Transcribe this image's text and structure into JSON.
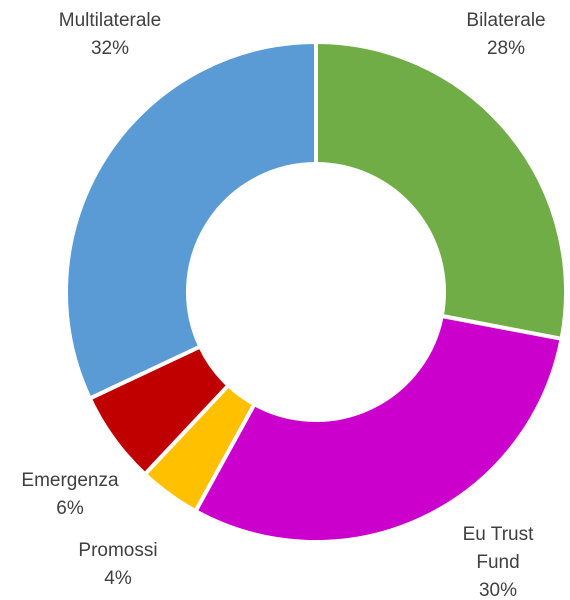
{
  "chart_data": {
    "type": "pie",
    "variant": "donut",
    "title": "",
    "legend": "none",
    "slices": [
      {
        "label": "Bilaterale",
        "percent_label": "28%",
        "value": 28,
        "color": "#70AD47"
      },
      {
        "label": "Eu Trust Fund",
        "percent_label": "30%",
        "value": 30,
        "color": "#CC00CC"
      },
      {
        "label": "Promossi",
        "percent_label": "4%",
        "value": 4,
        "color": "#FFC000"
      },
      {
        "label": "Emergenza",
        "percent_label": "6%",
        "value": 6,
        "color": "#C00000"
      },
      {
        "label": "Multilaterale",
        "percent_label": "32%",
        "value": 32,
        "color": "#5B9BD5"
      }
    ]
  }
}
